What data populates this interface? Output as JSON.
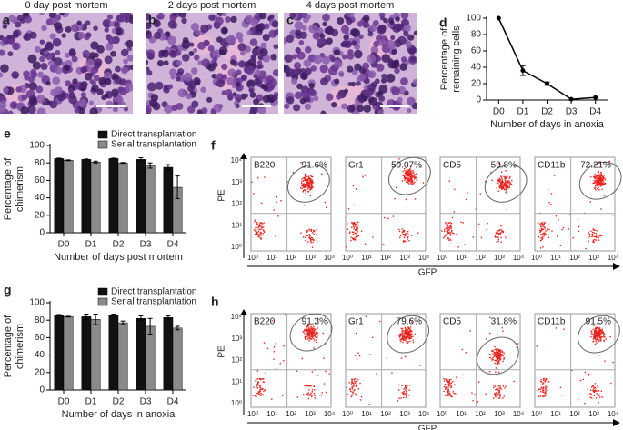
{
  "chart_data": [
    {
      "type": "line",
      "panel": "d",
      "categories": [
        "D0",
        "D1",
        "D2",
        "D3",
        "D4"
      ],
      "values": [
        100,
        36,
        20,
        1,
        3
      ],
      "errors": [
        null,
        6,
        2,
        null,
        null
      ],
      "color": "#000000",
      "ylim": [
        0,
        100
      ],
      "yticks": [
        0,
        20,
        40,
        60,
        80,
        100
      ],
      "ylabel": [
        "Percentage of",
        "remaining cells"
      ],
      "xlabel": "Number of days in anoxia"
    },
    {
      "type": "bar",
      "panel": "e",
      "categories": [
        "D0",
        "D1",
        "D2",
        "D3",
        "D4"
      ],
      "series": [
        {
          "name": "Direct transplantation",
          "color": "#111111",
          "values": [
            85,
            84,
            85,
            84,
            75
          ],
          "errors": [
            0.5,
            0.5,
            0.5,
            2,
            3
          ]
        },
        {
          "name": "Serial transplantation",
          "color": "#8a8a8a",
          "values": [
            83,
            81,
            80,
            77,
            52
          ],
          "errors": [
            0.5,
            1,
            0.5,
            3,
            13
          ]
        }
      ],
      "ylim": [
        0,
        100
      ],
      "yticks": [
        0,
        20,
        40,
        60,
        80,
        100
      ],
      "ylabel": [
        "Percentage of",
        "chimerism"
      ],
      "xlabel": "Number of days post mortem"
    },
    {
      "type": "bar",
      "panel": "g",
      "categories": [
        "D0",
        "D1",
        "D2",
        "D3",
        "D4"
      ],
      "series": [
        {
          "name": "Direct transplantation",
          "color": "#111111",
          "values": [
            86,
            84,
            86,
            82,
            83
          ],
          "errors": [
            0.5,
            3,
            1,
            3,
            2
          ]
        },
        {
          "name": "Serial transplantation",
          "color": "#8a8a8a",
          "values": [
            84,
            81,
            77,
            73,
            71
          ],
          "errors": [
            0.5,
            6,
            2,
            9,
            2
          ]
        }
      ],
      "ylim": [
        0,
        100
      ],
      "yticks": [
        0,
        20,
        40,
        60,
        80,
        100
      ],
      "ylabel": [
        "Percentage of",
        "chimerism"
      ],
      "xlabel": "Number of days in anoxia"
    }
  ],
  "images": [
    {
      "panel": "a",
      "title": "0 day post mortem"
    },
    {
      "panel": "b",
      "title": "2 days post mortem"
    },
    {
      "panel": "c",
      "title": "4 days post mortem"
    }
  ],
  "flow_panels": [
    {
      "panel": "f",
      "ylabel": "PE",
      "xlabel": "GFP",
      "ticks": [
        {
          "value": 1,
          "label": "10⁰"
        },
        {
          "value": 10,
          "label": "10¹"
        },
        {
          "value": 100,
          "label": "10²"
        },
        {
          "value": 1000,
          "label": "10³"
        },
        {
          "value": 10000,
          "label": "10⁴"
        }
      ],
      "plots": [
        {
          "marker": "B220",
          "percent": "91.6%"
        },
        {
          "marker": "Gr1",
          "percent": "59.07%"
        },
        {
          "marker": "CD5",
          "percent": "59.8%"
        },
        {
          "marker": "CD11b",
          "percent": "72.21%"
        }
      ]
    },
    {
      "panel": "h",
      "ylabel": "PE",
      "xlabel": "GFP",
      "ticks": [
        {
          "value": 1,
          "label": "10⁰"
        },
        {
          "value": 10,
          "label": "10¹"
        },
        {
          "value": 100,
          "label": "10²"
        },
        {
          "value": 1000,
          "label": "10³"
        },
        {
          "value": 10000,
          "label": "10⁴"
        }
      ],
      "plots": [
        {
          "marker": "B220",
          "percent": "91.3%"
        },
        {
          "marker": "Gr1",
          "percent": "79.6%"
        },
        {
          "marker": "CD5",
          "percent": "31.8%"
        },
        {
          "marker": "CD11b",
          "percent": "91.5%"
        }
      ]
    }
  ]
}
